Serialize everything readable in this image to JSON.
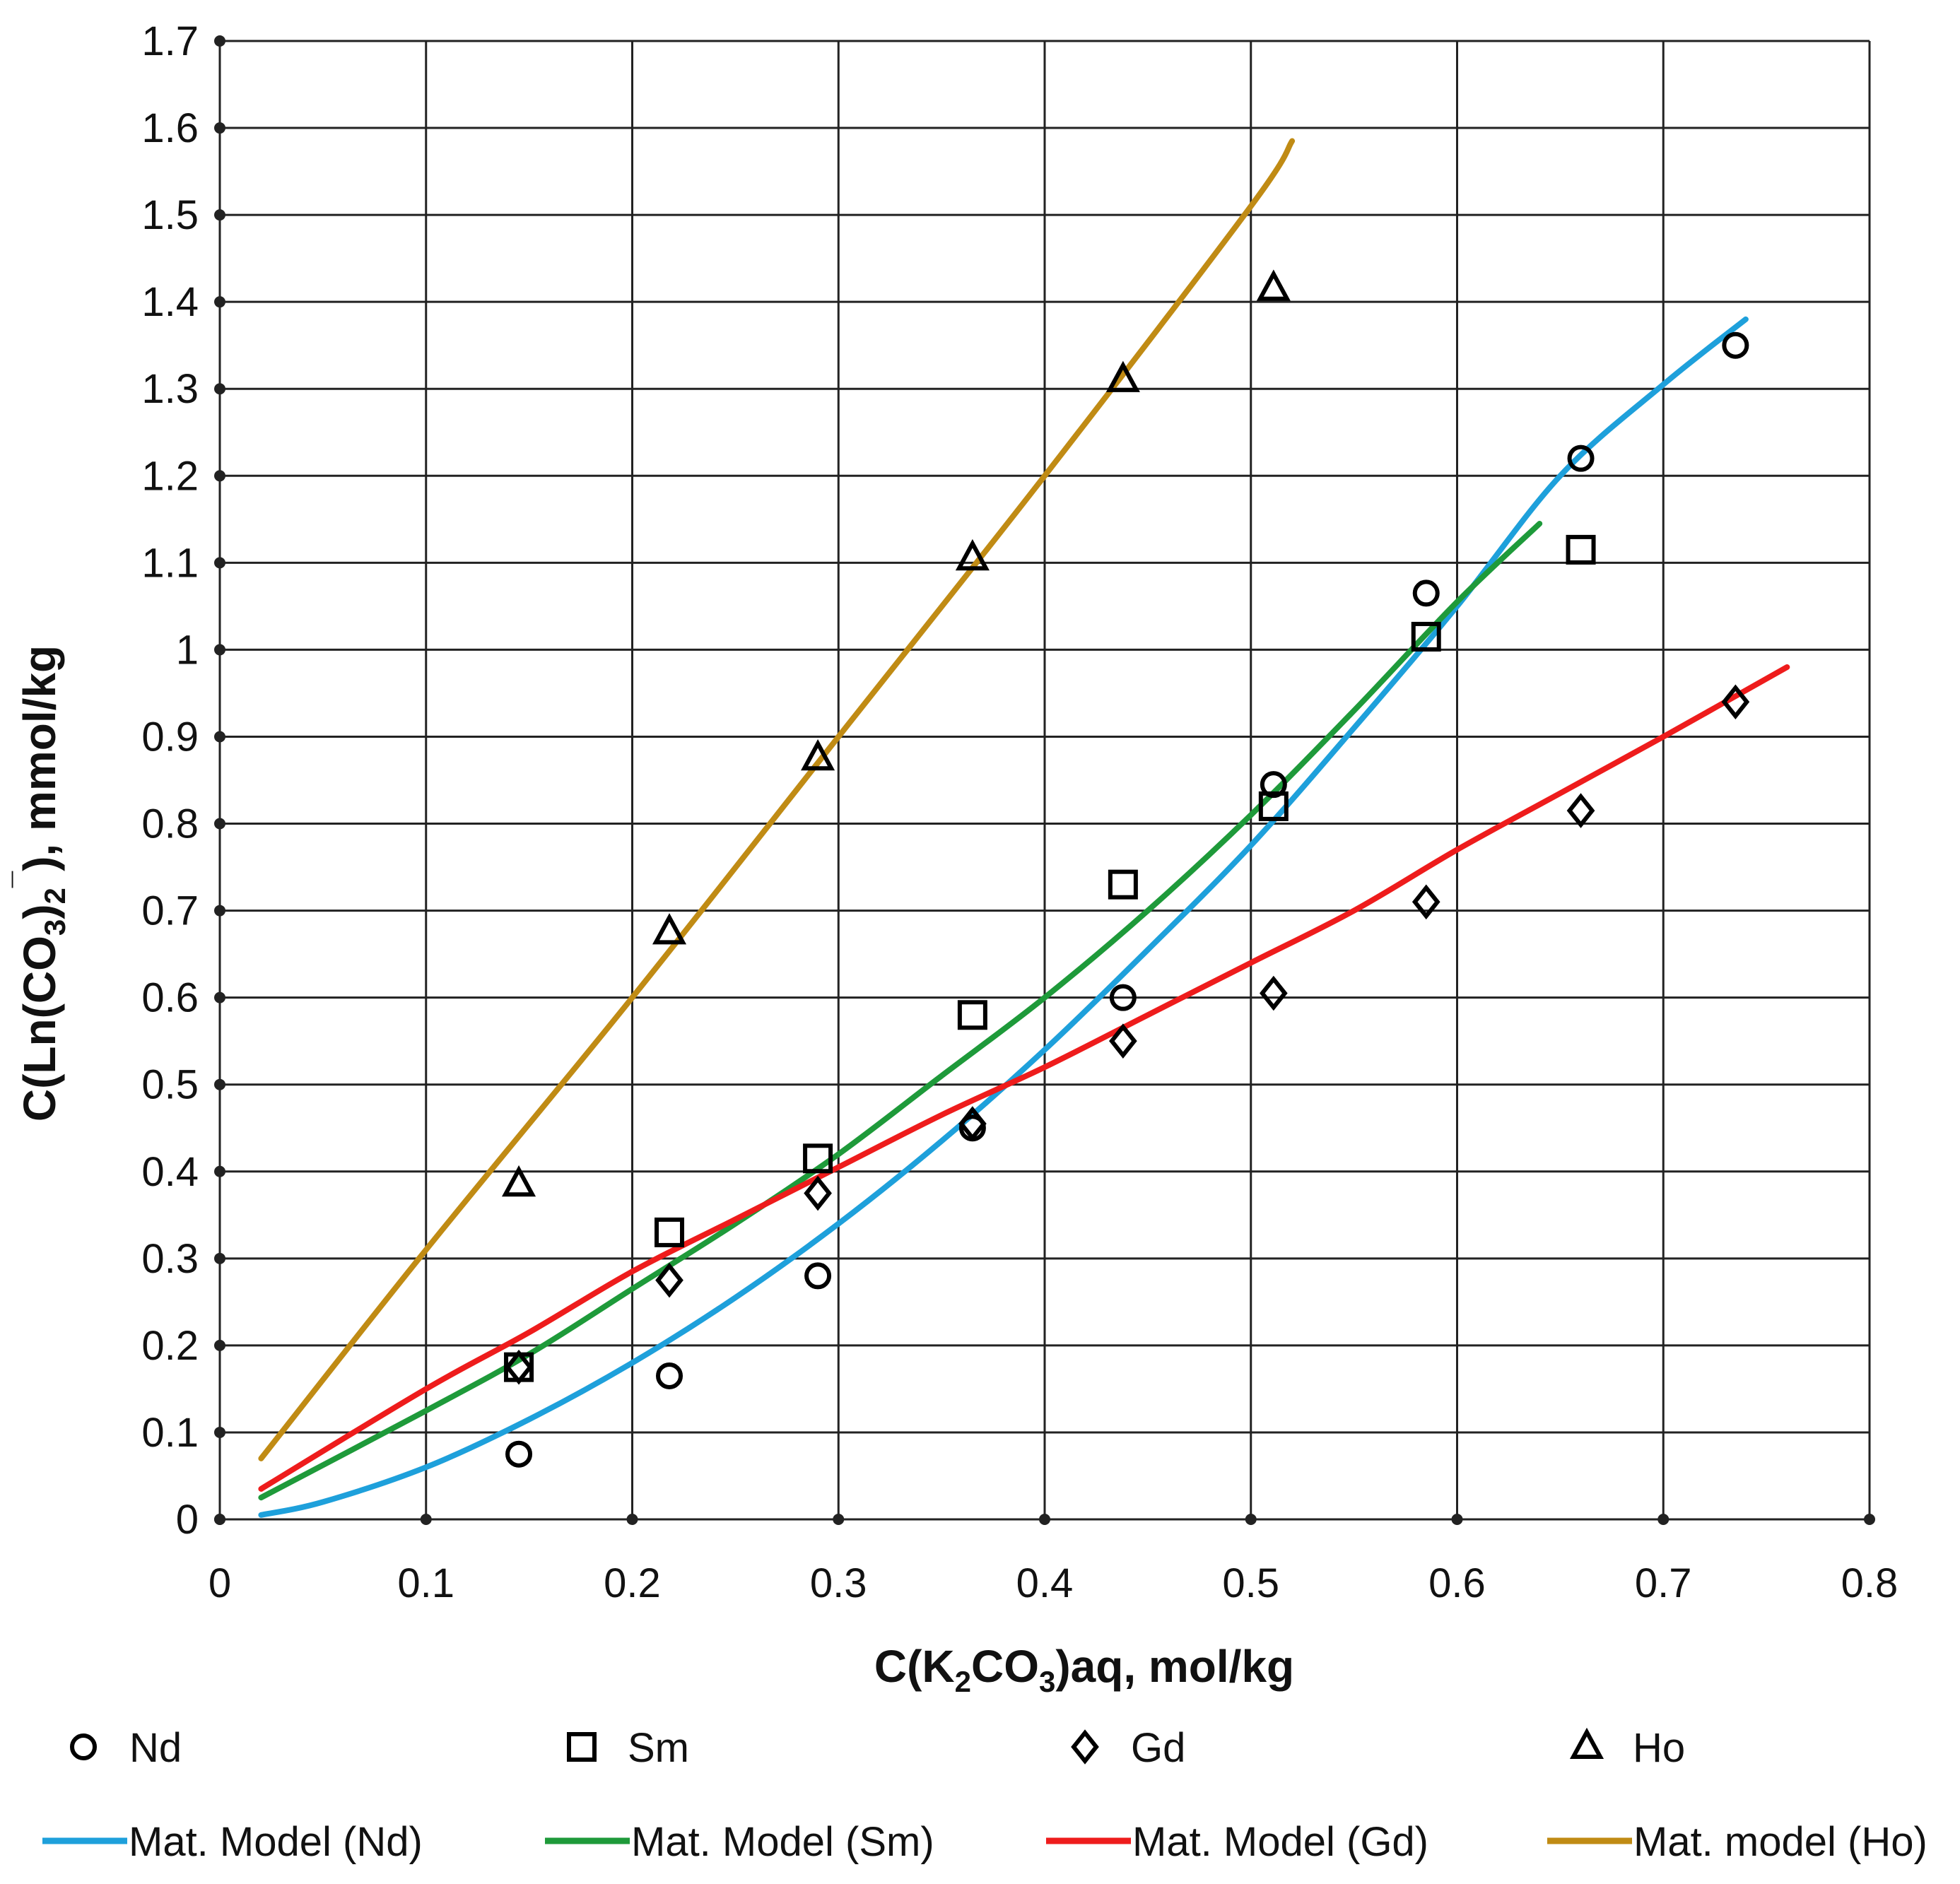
{
  "chart_data": {
    "type": "scatter",
    "xlabel_parts": [
      "C(K",
      "2",
      "CO",
      "3",
      ")aq, mol/kg"
    ],
    "ylabel_parts": [
      "C(Ln(CO",
      "3",
      ")",
      "2",
      "¯",
      "), mmol/kg"
    ],
    "xlim": [
      0,
      0.8
    ],
    "ylim": [
      0,
      1.7
    ],
    "x_ticks": [
      0,
      0.1,
      0.2,
      0.3,
      0.4,
      0.5,
      0.6,
      0.7,
      0.8
    ],
    "x_tick_labels": [
      "0",
      "0.1",
      "0.2",
      "0.3",
      "0.4",
      "0.5",
      "0.6",
      "0.7",
      "0.8"
    ],
    "y_ticks": [
      0,
      0.1,
      0.2,
      0.3,
      0.4,
      0.5,
      0.6,
      0.7,
      0.8,
      0.9,
      1,
      1.1,
      1.2,
      1.3,
      1.4,
      1.5,
      1.6,
      1.7
    ],
    "y_tick_labels": [
      "0",
      "0.1",
      "0.2",
      "0.3",
      "0.4",
      "0.5",
      "0.6",
      "0.7",
      "0.8",
      "0.9",
      "1",
      "1.1",
      "1.2",
      "1.3",
      "1.4",
      "1.5",
      "1.6",
      "1.7"
    ],
    "grid": true,
    "legend_position": "bottom",
    "scatter_series": [
      {
        "name": "Nd",
        "marker": "circle",
        "x": [
          0.145,
          0.218,
          0.29,
          0.365,
          0.438,
          0.511,
          0.585,
          0.66,
          0.735
        ],
        "y": [
          0.075,
          0.165,
          0.28,
          0.45,
          0.6,
          0.845,
          1.065,
          1.22,
          1.35
        ]
      },
      {
        "name": "Sm",
        "marker": "square",
        "x": [
          0.145,
          0.218,
          0.29,
          0.365,
          0.438,
          0.511,
          0.585,
          0.66
        ],
        "y": [
          0.175,
          0.33,
          0.415,
          0.58,
          0.73,
          0.82,
          1.015,
          1.115
        ]
      },
      {
        "name": "Gd",
        "marker": "diamond",
        "x": [
          0.145,
          0.218,
          0.29,
          0.365,
          0.438,
          0.511,
          0.585,
          0.66,
          0.735
        ],
        "y": [
          0.175,
          0.275,
          0.375,
          0.455,
          0.55,
          0.605,
          0.71,
          0.815,
          0.94
        ]
      },
      {
        "name": "Ho",
        "marker": "triangle",
        "x": [
          0.145,
          0.218,
          0.29,
          0.365,
          0.438,
          0.511
        ],
        "y": [
          0.385,
          0.675,
          0.875,
          1.105,
          1.31,
          1.415
        ]
      }
    ],
    "line_series": [
      {
        "name": "Mat. Model (Nd)",
        "color": "#1ea0db",
        "x": [
          0.02,
          0.05,
          0.1,
          0.15,
          0.2,
          0.25,
          0.3,
          0.35,
          0.4,
          0.45,
          0.5,
          0.55,
          0.6,
          0.65,
          0.7,
          0.74
        ],
        "y": [
          0.005,
          0.02,
          0.06,
          0.115,
          0.18,
          0.255,
          0.34,
          0.435,
          0.54,
          0.655,
          0.775,
          0.91,
          1.05,
          1.2,
          1.305,
          1.38
        ]
      },
      {
        "name": "Mat. Model (Sm)",
        "color": "#1e9a3a",
        "x": [
          0.02,
          0.1,
          0.15,
          0.2,
          0.25,
          0.3,
          0.35,
          0.4,
          0.45,
          0.5,
          0.55,
          0.6,
          0.64
        ],
        "y": [
          0.025,
          0.125,
          0.19,
          0.265,
          0.34,
          0.42,
          0.51,
          0.6,
          0.7,
          0.81,
          0.93,
          1.055,
          1.145
        ]
      },
      {
        "name": "Mat. Model (Gd)",
        "color": "#ee1c1c",
        "x": [
          0.02,
          0.1,
          0.15,
          0.2,
          0.25,
          0.3,
          0.35,
          0.4,
          0.45,
          0.5,
          0.55,
          0.6,
          0.65,
          0.7,
          0.76
        ],
        "y": [
          0.035,
          0.15,
          0.215,
          0.285,
          0.345,
          0.405,
          0.465,
          0.52,
          0.58,
          0.64,
          0.7,
          0.77,
          0.835,
          0.9,
          0.98
        ]
      },
      {
        "name": "Mat. model (Ho)",
        "color": "#c08b14",
        "x": [
          0.02,
          0.1,
          0.2,
          0.3,
          0.4,
          0.5,
          0.52
        ],
        "y": [
          0.07,
          0.31,
          0.6,
          0.9,
          1.2,
          1.51,
          1.585
        ]
      }
    ]
  }
}
